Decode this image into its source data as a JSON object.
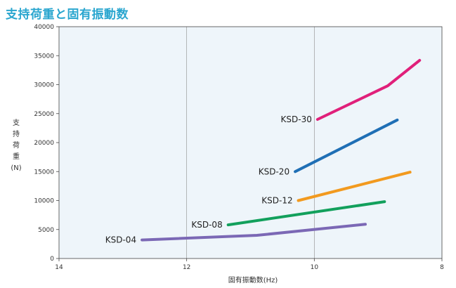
{
  "title": "支持荷重と固有振動数",
  "chart_data": {
    "type": "line",
    "title": "支持荷重と固有振動数",
    "xlabel": "固有振動数(Hz)",
    "ylabel": "支持荷重\n(N)",
    "xlim": [
      14,
      8
    ],
    "ylim": [
      0,
      40000
    ],
    "x_ticks": [
      "14",
      "12",
      "10",
      "8"
    ],
    "y_ticks": [
      "0",
      "5000",
      "10000",
      "15000",
      "20000",
      "25000",
      "30000",
      "35000",
      "40000"
    ],
    "grid": {
      "vertical": true,
      "horizontal": false
    },
    "background": "#eef5fa",
    "series": [
      {
        "name": "KSD-04",
        "color": "#7b68b5",
        "points": [
          [
            12.7,
            3200
          ],
          [
            10.9,
            4000
          ],
          [
            9.2,
            5900
          ]
        ]
      },
      {
        "name": "KSD-08",
        "color": "#12a05c",
        "points": [
          [
            11.35,
            5800
          ],
          [
            8.9,
            9800
          ]
        ]
      },
      {
        "name": "KSD-12",
        "color": "#f29a1f",
        "points": [
          [
            10.25,
            10000
          ],
          [
            8.5,
            14900
          ]
        ]
      },
      {
        "name": "KSD-20",
        "color": "#1f6fb5",
        "points": [
          [
            10.3,
            15000
          ],
          [
            8.7,
            23900
          ]
        ]
      },
      {
        "name": "KSD-30",
        "color": "#e0207a",
        "points": [
          [
            9.95,
            24000
          ],
          [
            8.85,
            29800
          ],
          [
            8.35,
            34200
          ]
        ]
      }
    ]
  }
}
